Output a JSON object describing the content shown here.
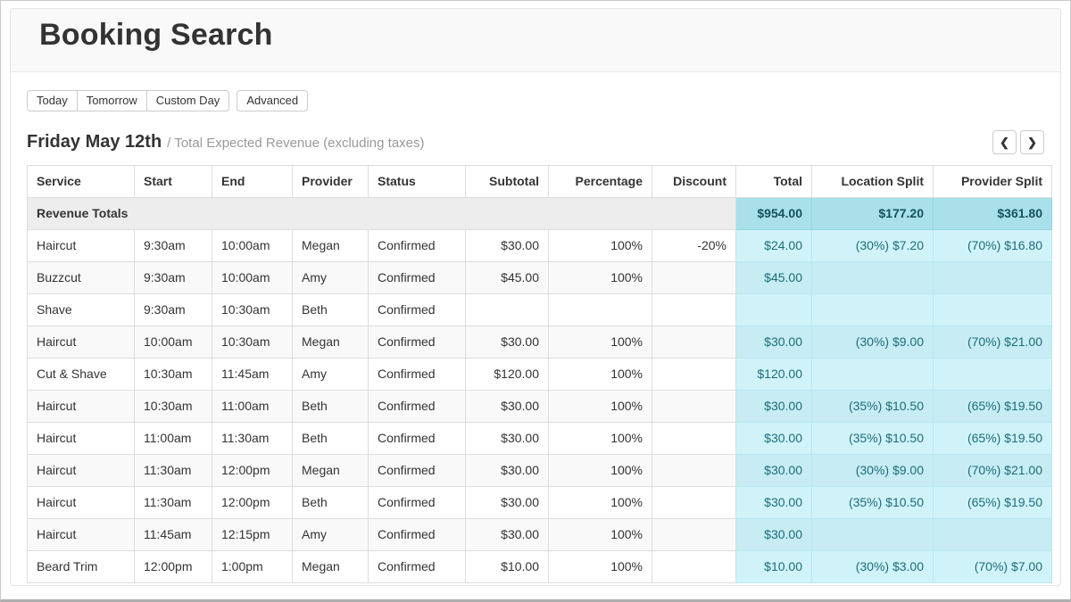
{
  "page": {
    "title": "Booking Search"
  },
  "toolbar": {
    "buttons": [
      "Today",
      "Tomorrow",
      "Custom Day"
    ],
    "advanced_label": "Advanced"
  },
  "heading": {
    "date": "Friday May 12th",
    "separator": "/",
    "subtitle": "Total Expected Revenue (excluding taxes)"
  },
  "pagination": {
    "prev_icon": "❮",
    "next_icon": "❯"
  },
  "table": {
    "columns": [
      "Service",
      "Start",
      "End",
      "Provider",
      "Status",
      "Subtotal",
      "Percentage",
      "Discount",
      "Total",
      "Location Split",
      "Provider Split"
    ],
    "totals": {
      "label": "Revenue Totals",
      "total": "$954.00",
      "location_split": "$177.20",
      "provider_split": "$361.80"
    },
    "rows": [
      [
        "Haircut",
        "9:30am",
        "10:00am",
        "Megan",
        "Confirmed",
        "$30.00",
        "100%",
        "-20%",
        "$24.00",
        "(30%) $7.20",
        "(70%) $16.80"
      ],
      [
        "Buzzcut",
        "9:30am",
        "10:00am",
        "Amy",
        "Confirmed",
        "$45.00",
        "100%",
        "",
        "$45.00",
        "",
        ""
      ],
      [
        "Shave",
        "9:30am",
        "10:30am",
        "Beth",
        "Confirmed",
        "",
        "",
        "",
        "",
        "",
        ""
      ],
      [
        "Haircut",
        "10:00am",
        "10:30am",
        "Megan",
        "Confirmed",
        "$30.00",
        "100%",
        "",
        "$30.00",
        "(30%) $9.00",
        "(70%) $21.00"
      ],
      [
        "Cut & Shave",
        "10:30am",
        "11:45am",
        "Amy",
        "Confirmed",
        "$120.00",
        "100%",
        "",
        "$120.00",
        "",
        ""
      ],
      [
        "Haircut",
        "10:30am",
        "11:00am",
        "Beth",
        "Confirmed",
        "$30.00",
        "100%",
        "",
        "$30.00",
        "(35%) $10.50",
        "(65%) $19.50"
      ],
      [
        "Haircut",
        "11:00am",
        "11:30am",
        "Beth",
        "Confirmed",
        "$30.00",
        "100%",
        "",
        "$30.00",
        "(35%) $10.50",
        "(65%) $19.50"
      ],
      [
        "Haircut",
        "11:30am",
        "12:00pm",
        "Megan",
        "Confirmed",
        "$30.00",
        "100%",
        "",
        "$30.00",
        "(30%) $9.00",
        "(70%) $21.00"
      ],
      [
        "Haircut",
        "11:30am",
        "12:00pm",
        "Beth",
        "Confirmed",
        "$30.00",
        "100%",
        "",
        "$30.00",
        "(35%) $10.50",
        "(65%) $19.50"
      ],
      [
        "Haircut",
        "11:45am",
        "12:15pm",
        "Amy",
        "Confirmed",
        "$30.00",
        "100%",
        "",
        "$30.00",
        "",
        ""
      ],
      [
        "Beard Trim",
        "12:00pm",
        "1:00pm",
        "Megan",
        "Confirmed",
        "$10.00",
        "100%",
        "",
        "$10.00",
        "(30%) $3.00",
        "(70%) $7.00"
      ]
    ]
  },
  "colors": {
    "highlight_cell": "#d0f3f9",
    "highlight_cell_striped": "#c7ecf3",
    "highlight_totals_cell": "#a9e0e9",
    "highlight_text": "#1b6d7a",
    "highlight_totals_text": "#15525d",
    "stripe_row": "#f9f9f9",
    "totals_row": "#ededed",
    "header_panel": "#f9f9f9"
  }
}
